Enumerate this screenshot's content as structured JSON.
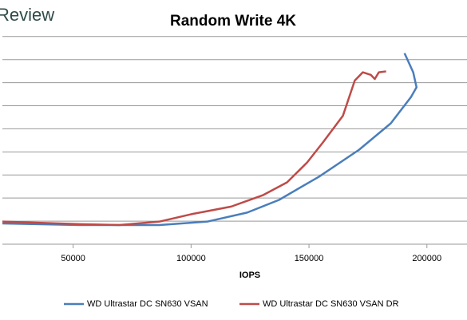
{
  "brand": "Review",
  "chart_data": {
    "type": "line",
    "title": "Random Write 4K",
    "x_label": "IOPS",
    "xlim": [
      20000,
      217000
    ],
    "xticks": [
      50000,
      100000,
      150000,
      200000
    ],
    "ylim": [
      0,
      9.2
    ],
    "grid_lines": [
      1,
      2,
      3,
      4,
      5,
      6,
      7,
      8,
      9
    ],
    "grid": true,
    "legend": "bottom",
    "series": [
      {
        "name": "WD Ultrastar DC SN630 VSAN",
        "color": "#4a7ebb",
        "x": [
          20000,
          52700,
          86600,
          106900,
          123800,
          137300,
          154300,
          171200,
          184700,
          193200,
          195600,
          194200,
          190500
        ],
        "values": [
          0.9,
          0.83,
          0.83,
          0.98,
          1.37,
          1.92,
          2.93,
          4.09,
          5.24,
          6.37,
          6.8,
          7.45,
          8.28
        ]
      },
      {
        "name": "WD Ultrastar DC SN630 VSAN DR",
        "color": "#be4b48",
        "x": [
          20000,
          52700,
          69600,
          86600,
          100100,
          117000,
          130600,
          140700,
          149200,
          155900,
          164400,
          169400,
          172800,
          176200,
          177900,
          179600,
          182700
        ],
        "values": [
          0.98,
          0.87,
          0.83,
          0.98,
          1.3,
          1.63,
          2.13,
          2.68,
          3.54,
          4.41,
          5.57,
          7.09,
          7.45,
          7.34,
          7.16,
          7.45,
          7.49
        ]
      }
    ]
  }
}
